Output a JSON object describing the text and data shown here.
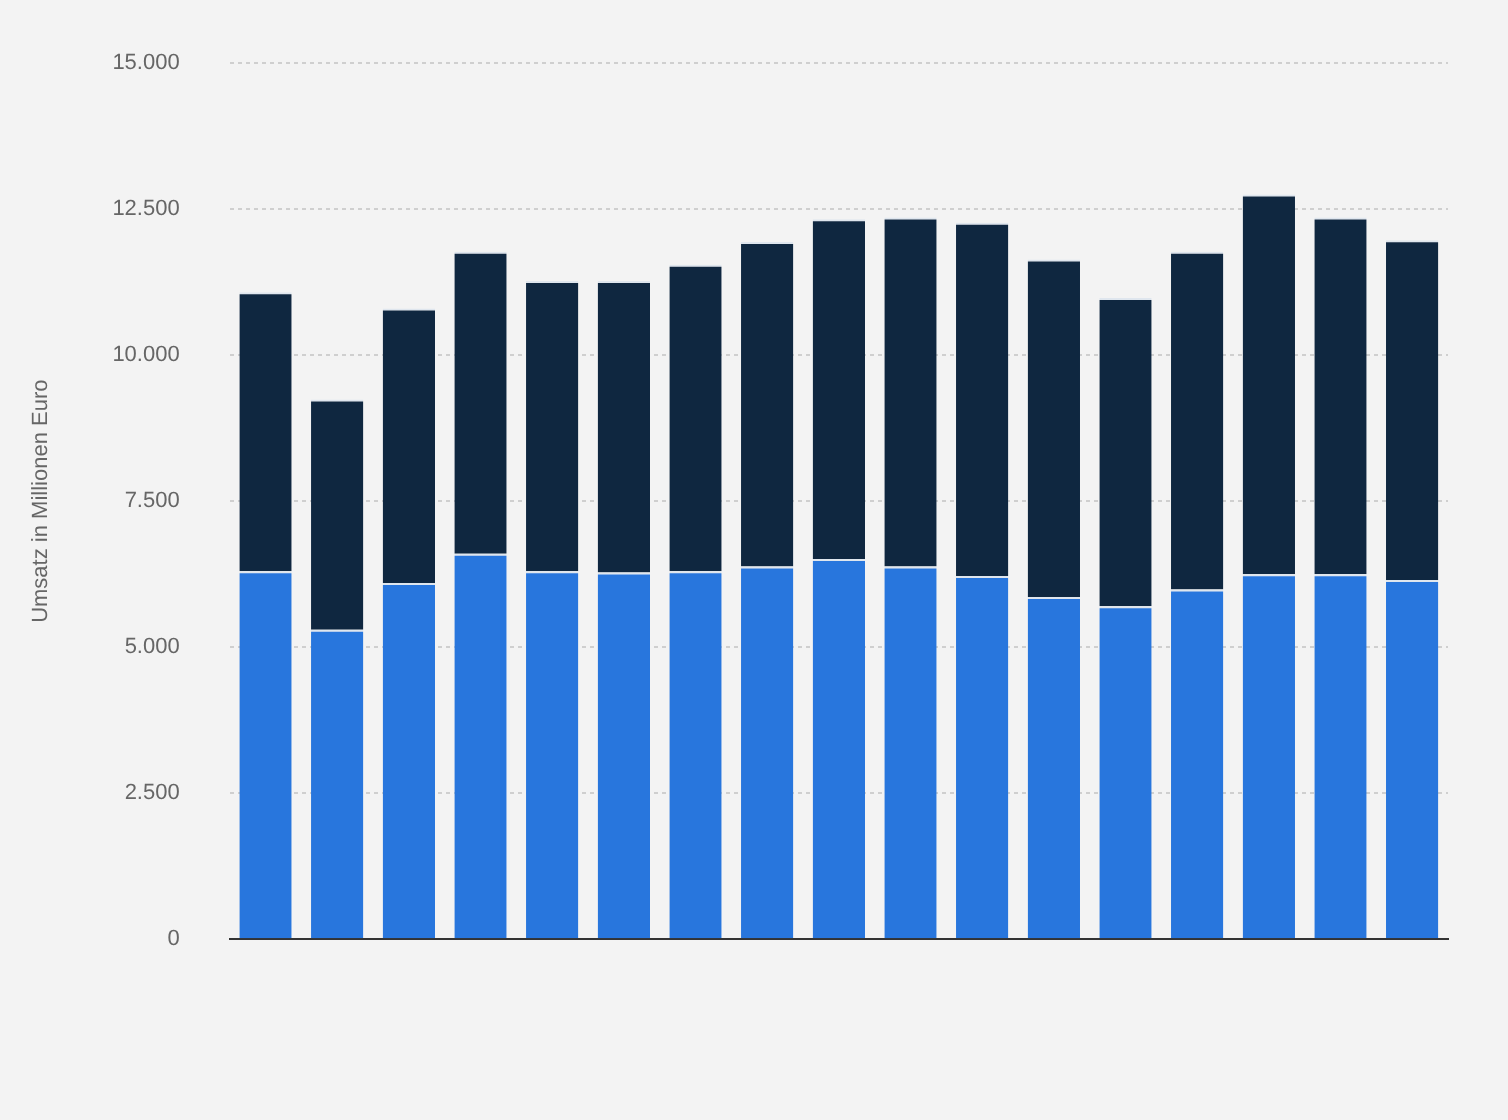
{
  "chart_data": {
    "type": "bar",
    "stacked": true,
    "ylabel": "Umsatz in Millionen Euro",
    "categories": [
      null,
      null,
      null,
      null,
      null,
      null,
      null,
      null,
      null,
      null,
      null,
      null,
      null,
      null,
      null,
      null,
      null
    ],
    "series": [
      {
        "color": "#2876dd",
        "values": [
          6300,
          5300,
          6100,
          6600,
          6300,
          6280,
          6300,
          6380,
          6510,
          6380,
          6220,
          5860,
          5700,
          5990,
          6250,
          6250,
          6150
        ]
      },
      {
        "color": "#0f2740",
        "values": [
          4780,
          3940,
          4700,
          5170,
          4970,
          4990,
          5250,
          5560,
          5820,
          5980,
          6050,
          5780,
          5280,
          5780,
          6500,
          6110,
          5820
        ]
      }
    ],
    "ylim": [
      0,
      15000
    ],
    "yticks": [
      {
        "value": 0,
        "label": "0"
      },
      {
        "value": 2500,
        "label": "2.500"
      },
      {
        "value": 5000,
        "label": "5.000"
      },
      {
        "value": 7500,
        "label": "7.500"
      },
      {
        "value": 10000,
        "label": "10.000"
      },
      {
        "value": 12500,
        "label": "12.500"
      },
      {
        "value": 15000,
        "label": "15.000"
      }
    ],
    "grid": "y",
    "legend": false
  }
}
